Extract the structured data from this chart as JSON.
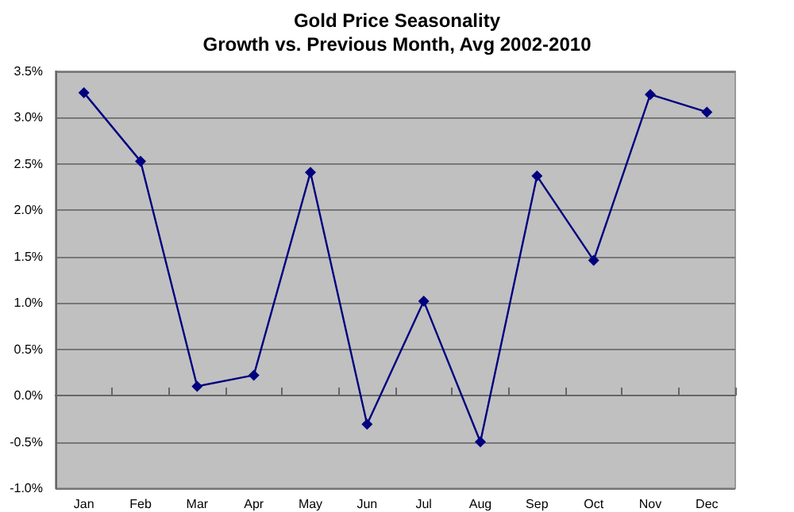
{
  "chart_data": {
    "type": "line",
    "title": "Gold Price Seasonality",
    "subtitle": "Growth vs. Previous Month, Avg 2002-2010",
    "categories": [
      "Jan",
      "Feb",
      "Mar",
      "Apr",
      "May",
      "Jun",
      "Jul",
      "Aug",
      "Sep",
      "Oct",
      "Nov",
      "Dec"
    ],
    "series": [
      {
        "color": "#000080",
        "values": [
          3.27,
          2.53,
          0.1,
          0.22,
          2.41,
          -0.31,
          1.02,
          -0.5,
          2.37,
          1.46,
          3.25,
          3.06
        ]
      }
    ],
    "ylim": [
      -1.0,
      3.5
    ],
    "yticks": [
      {
        "value": -1.0,
        "label": "-1.0%"
      },
      {
        "value": -0.5,
        "label": "-0.5%"
      },
      {
        "value": 0,
        "label": "0.0%"
      },
      {
        "value": 0.5,
        "label": "0.5%"
      },
      {
        "value": 1.0,
        "label": "1.0%"
      },
      {
        "value": 1.5,
        "label": "1.5%"
      },
      {
        "value": 2.0,
        "label": "2.0%"
      },
      {
        "value": 2.5,
        "label": "2.5%"
      },
      {
        "value": 3.0,
        "label": "3.0%"
      },
      {
        "value": 3.5,
        "label": "3.5%"
      }
    ],
    "grid": "y",
    "marker": "diamond",
    "line_style": "solid"
  }
}
